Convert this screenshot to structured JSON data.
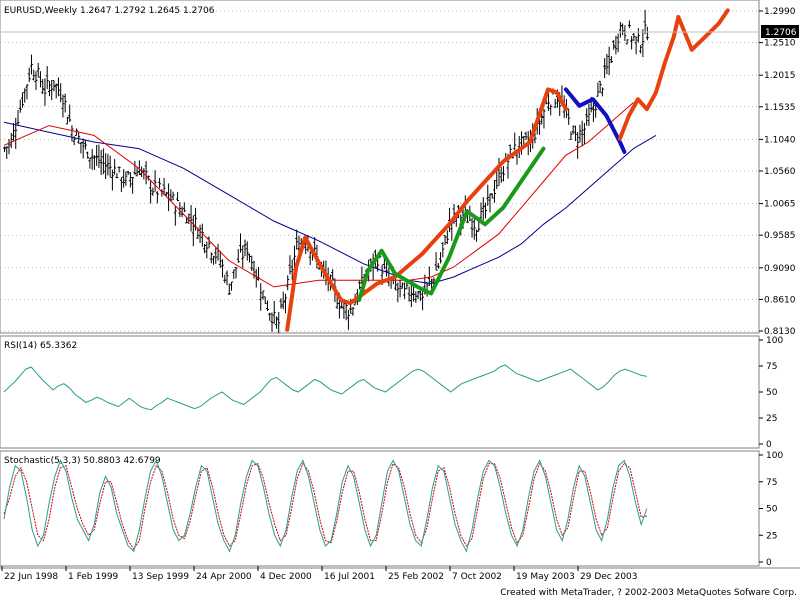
{
  "price_panel": {
    "header": "EURUSD,Weekly  1.2647 1.2792 1.2645 1.2706",
    "current_price_label": "1.2706",
    "price_ticks": [
      "1.2990",
      "1.2510",
      "1.2015",
      "1.1535",
      "1.1040",
      "1.0560",
      "1.0065",
      "0.9585",
      "0.9090",
      "0.8610",
      "0.8130"
    ]
  },
  "rsi_panel": {
    "header": "RSI(14)  65.3362",
    "ticks": [
      "100",
      "75",
      "50",
      "25",
      "0"
    ]
  },
  "stoch_panel": {
    "header": "Stochastic(5,3,3)  50.8803  42.6799",
    "ticks": [
      "100",
      "75",
      "50",
      "25",
      "0"
    ]
  },
  "time_axis": {
    "labels": [
      "22 Jun 1998",
      "1 Feb 1999",
      "13 Sep 1999",
      "24 Apr 2000",
      "4 Dec 2000",
      "16 Jul 2001",
      "25 Feb 2002",
      "7 Oct 2002",
      "19 May 2003",
      "29 Dec 2003"
    ]
  },
  "footer": "Created with MetaTrader, ? 2002-2003 MetaQuotes Sofware Corp.",
  "colors": {
    "bars": "#000000",
    "ma_fast": "#e00000",
    "ma_slow": "#00008b",
    "zigzag_red": "#e8400e",
    "zigzag_green": "#1a9a1a",
    "zigzag_blue": "#1010c0",
    "rsi_line": "#2a9d8f",
    "stoch_main": "#2a9d8f",
    "stoch_signal": "#d00000",
    "grid": "#808080"
  },
  "chart_data": [
    {
      "type": "candlestick",
      "title": "EURUSD,Weekly",
      "yticks": [
        1.299,
        1.251,
        1.2015,
        1.1535,
        1.104,
        1.056,
        1.0065,
        0.9585,
        0.909,
        0.861,
        0.813
      ],
      "ylim": [
        0.813,
        1.299
      ],
      "ohlc_last": [
        1.2647,
        1.2792,
        1.2645,
        1.2706
      ],
      "x_dates": [
        "1998-06-22",
        "1999-02-01",
        "1999-09-13",
        "2000-04-24",
        "2000-12-04",
        "2001-07-16",
        "2002-02-25",
        "2002-10-07",
        "2003-05-19",
        "2003-12-29"
      ],
      "close_path": [
        [
          0,
          1.09
        ],
        [
          3,
          1.1
        ],
        [
          8,
          1.165
        ],
        [
          12,
          1.215
        ],
        [
          15,
          1.2
        ],
        [
          18,
          1.18
        ],
        [
          22,
          1.19
        ],
        [
          26,
          1.17
        ],
        [
          30,
          1.12
        ],
        [
          36,
          1.09
        ],
        [
          42,
          1.07
        ],
        [
          48,
          1.06
        ],
        [
          54,
          1.04
        ],
        [
          60,
          1.06
        ],
        [
          66,
          1.03
        ],
        [
          72,
          1.02
        ],
        [
          78,
          1.0
        ],
        [
          84,
          0.98
        ],
        [
          90,
          0.95
        ],
        [
          96,
          0.92
        ],
        [
          100,
          0.88
        ],
        [
          104,
          0.92
        ],
        [
          108,
          0.94
        ],
        [
          112,
          0.9
        ],
        [
          116,
          0.86
        ],
        [
          120,
          0.83
        ],
        [
          122,
          0.825
        ],
        [
          126,
          0.88
        ],
        [
          130,
          0.94
        ],
        [
          134,
          0.955
        ],
        [
          138,
          0.93
        ],
        [
          142,
          0.9
        ],
        [
          146,
          0.88
        ],
        [
          150,
          0.85
        ],
        [
          154,
          0.845
        ],
        [
          158,
          0.875
        ],
        [
          162,
          0.905
        ],
        [
          166,
          0.925
        ],
        [
          170,
          0.895
        ],
        [
          174,
          0.88
        ],
        [
          178,
          0.87
        ],
        [
          182,
          0.875
        ],
        [
          186,
          0.865
        ],
        [
          190,
          0.89
        ],
        [
          194,
          0.92
        ],
        [
          198,
          0.975
        ],
        [
          202,
          0.99
        ],
        [
          206,
          0.985
        ],
        [
          210,
          0.975
        ],
        [
          214,
          0.995
        ],
        [
          218,
          1.03
        ],
        [
          222,
          1.06
        ],
        [
          226,
          1.085
        ],
        [
          230,
          1.095
        ],
        [
          234,
          1.1
        ],
        [
          238,
          1.13
        ],
        [
          242,
          1.165
        ],
        [
          246,
          1.17
        ],
        [
          250,
          1.14
        ],
        [
          254,
          1.105
        ],
        [
          258,
          1.12
        ],
        [
          262,
          1.15
        ],
        [
          266,
          1.19
        ],
        [
          270,
          1.23
        ],
        [
          274,
          1.275
        ],
        [
          278,
          1.265
        ],
        [
          282,
          1.25
        ],
        [
          286,
          1.2706
        ]
      ],
      "ma_fast": [
        [
          0,
          1.095
        ],
        [
          20,
          1.125
        ],
        [
          40,
          1.11
        ],
        [
          60,
          1.06
        ],
        [
          80,
          0.99
        ],
        [
          100,
          0.92
        ],
        [
          120,
          0.88
        ],
        [
          140,
          0.89
        ],
        [
          160,
          0.89
        ],
        [
          180,
          0.89
        ],
        [
          190,
          0.895
        ],
        [
          200,
          0.91
        ],
        [
          210,
          0.935
        ],
        [
          220,
          0.96
        ],
        [
          230,
          1.0
        ],
        [
          240,
          1.04
        ],
        [
          250,
          1.08
        ],
        [
          260,
          1.1
        ],
        [
          270,
          1.13
        ],
        [
          280,
          1.16
        ]
      ],
      "ma_slow": [
        [
          0,
          1.13
        ],
        [
          20,
          1.115
        ],
        [
          40,
          1.1
        ],
        [
          60,
          1.09
        ],
        [
          80,
          1.06
        ],
        [
          100,
          1.02
        ],
        [
          120,
          0.98
        ],
        [
          140,
          0.95
        ],
        [
          160,
          0.915
        ],
        [
          180,
          0.89
        ],
        [
          190,
          0.885
        ],
        [
          200,
          0.895
        ],
        [
          210,
          0.91
        ],
        [
          220,
          0.925
        ],
        [
          230,
          0.945
        ],
        [
          240,
          0.975
        ],
        [
          250,
          1.0
        ],
        [
          260,
          1.03
        ],
        [
          270,
          1.06
        ],
        [
          280,
          1.09
        ],
        [
          290,
          1.11
        ]
      ],
      "zigzag": [
        {
          "name": "",
          "color_key": "zigzag_red",
          "points": [
            [
              126,
              0.815
            ],
            [
              130,
              0.91
            ],
            [
              134,
              0.955
            ],
            [
              142,
              0.905
            ],
            [
              150,
              0.86
            ],
            [
              154,
              0.855
            ],
            [
              160,
              0.87
            ],
            [
              166,
              0.885
            ],
            [
              174,
              0.895
            ],
            [
              186,
              0.93
            ],
            [
              198,
              0.975
            ],
            [
              206,
              1.01
            ],
            [
              214,
              1.04
            ],
            [
              222,
              1.07
            ],
            [
              234,
              1.1
            ],
            [
              238,
              1.14
            ],
            [
              242,
              1.18
            ],
            [
              246,
              1.175
            ],
            [
              250,
              1.15
            ]
          ]
        },
        {
          "name": "",
          "color_key": "zigzag_green",
          "points": [
            [
              158,
              0.86
            ],
            [
              162,
              0.905
            ],
            [
              168,
              0.935
            ],
            [
              174,
              0.9
            ],
            [
              184,
              0.88
            ],
            [
              190,
              0.87
            ],
            [
              198,
              0.925
            ],
            [
              206,
              0.995
            ],
            [
              214,
              0.975
            ],
            [
              222,
              1.0
            ],
            [
              232,
              1.05
            ],
            [
              240,
              1.09
            ]
          ]
        },
        {
          "name": "",
          "color_key": "zigzag_blue",
          "points": [
            [
              250,
              1.18
            ],
            [
              256,
              1.155
            ],
            [
              262,
              1.165
            ],
            [
              268,
              1.14
            ],
            [
              274,
              1.1
            ],
            [
              276,
              1.085
            ]
          ]
        },
        {
          "name": "",
          "color_key": "zigzag_red",
          "points": [
            [
              274,
              1.105
            ],
            [
              278,
              1.14
            ],
            [
              282,
              1.165
            ],
            [
              286,
              1.15
            ],
            [
              290,
              1.175
            ],
            [
              294,
              1.22
            ],
            [
              298,
              1.26
            ],
            [
              300,
              1.29
            ],
            [
              306,
              1.24
            ],
            [
              312,
              1.26
            ],
            [
              318,
              1.28
            ],
            [
              322,
              1.3
            ]
          ]
        }
      ]
    },
    {
      "type": "line",
      "title": "RSI(14)",
      "ylim": [
        0,
        100
      ],
      "yticks": [
        100,
        75,
        50,
        25,
        0
      ],
      "series": [
        {
          "name": "RSI(14)",
          "last": 65.3362,
          "values": [
            50,
            55,
            60,
            66,
            72,
            74,
            68,
            62,
            57,
            52,
            56,
            58,
            54,
            48,
            44,
            40,
            42,
            45,
            43,
            40,
            38,
            36,
            40,
            44,
            40,
            36,
            34,
            33,
            37,
            40,
            44,
            42,
            40,
            38,
            36,
            34,
            36,
            40,
            44,
            47,
            50,
            46,
            42,
            40,
            38,
            42,
            46,
            50,
            56,
            62,
            64,
            60,
            56,
            52,
            50,
            54,
            58,
            62,
            60,
            56,
            52,
            50,
            48,
            52,
            56,
            60,
            62,
            58,
            54,
            52,
            50,
            54,
            58,
            62,
            66,
            70,
            72,
            70,
            66,
            62,
            58,
            54,
            50,
            54,
            58,
            60,
            62,
            64,
            66,
            68,
            70,
            74,
            76,
            72,
            68,
            66,
            64,
            62,
            60,
            62,
            64,
            66,
            68,
            70,
            72,
            68,
            64,
            60,
            56,
            52,
            55,
            60,
            66,
            70,
            72,
            70,
            68,
            66,
            65
          ]
        }
      ]
    },
    {
      "type": "line",
      "title": "Stochastic(5,3,3)",
      "ylim": [
        0,
        100
      ],
      "yticks": [
        100,
        75,
        50,
        25,
        0
      ],
      "series": [
        {
          "name": "Main",
          "last": 50.8803,
          "values": [
            40,
            70,
            90,
            85,
            60,
            30,
            15,
            25,
            55,
            80,
            95,
            85,
            60,
            40,
            30,
            20,
            35,
            65,
            80,
            70,
            45,
            30,
            15,
            10,
            30,
            60,
            85,
            95,
            80,
            55,
            30,
            20,
            25,
            45,
            70,
            90,
            85,
            60,
            35,
            20,
            10,
            25,
            55,
            80,
            95,
            90,
            70,
            45,
            25,
            15,
            30,
            60,
            85,
            95,
            80,
            55,
            30,
            15,
            20,
            45,
            75,
            90,
            80,
            55,
            30,
            15,
            25,
            55,
            85,
            95,
            85,
            60,
            35,
            20,
            15,
            40,
            70,
            90,
            85,
            60,
            35,
            20,
            10,
            30,
            60,
            85,
            95,
            90,
            70,
            45,
            25,
            15,
            30,
            60,
            85,
            95,
            80,
            55,
            30,
            20,
            40,
            70,
            90,
            80,
            55,
            30,
            20,
            40,
            70,
            90,
            95,
            80,
            55,
            35,
            50
          ]
        },
        {
          "name": "Signal",
          "last": 42.6799,
          "values": [
            45,
            60,
            80,
            88,
            75,
            50,
            25,
            20,
            40,
            70,
            88,
            90,
            70,
            50,
            35,
            25,
            30,
            55,
            75,
            75,
            55,
            35,
            20,
            12,
            20,
            50,
            75,
            90,
            85,
            65,
            40,
            25,
            22,
            38,
            62,
            85,
            88,
            70,
            45,
            25,
            15,
            20,
            45,
            72,
            90,
            92,
            78,
            55,
            35,
            20,
            25,
            50,
            78,
            92,
            85,
            65,
            40,
            20,
            18,
            38,
            65,
            85,
            85,
            65,
            40,
            20,
            20,
            45,
            75,
            92,
            88,
            70,
            45,
            25,
            18,
            32,
            60,
            85,
            88,
            70,
            45,
            25,
            15,
            22,
            50,
            78,
            92,
            92,
            78,
            55,
            32,
            18,
            25,
            50,
            78,
            92,
            85,
            65,
            40,
            25,
            32,
            60,
            85,
            85,
            65,
            40,
            25,
            32,
            60,
            85,
            92,
            88,
            65,
            42,
            43
          ]
        }
      ]
    }
  ]
}
